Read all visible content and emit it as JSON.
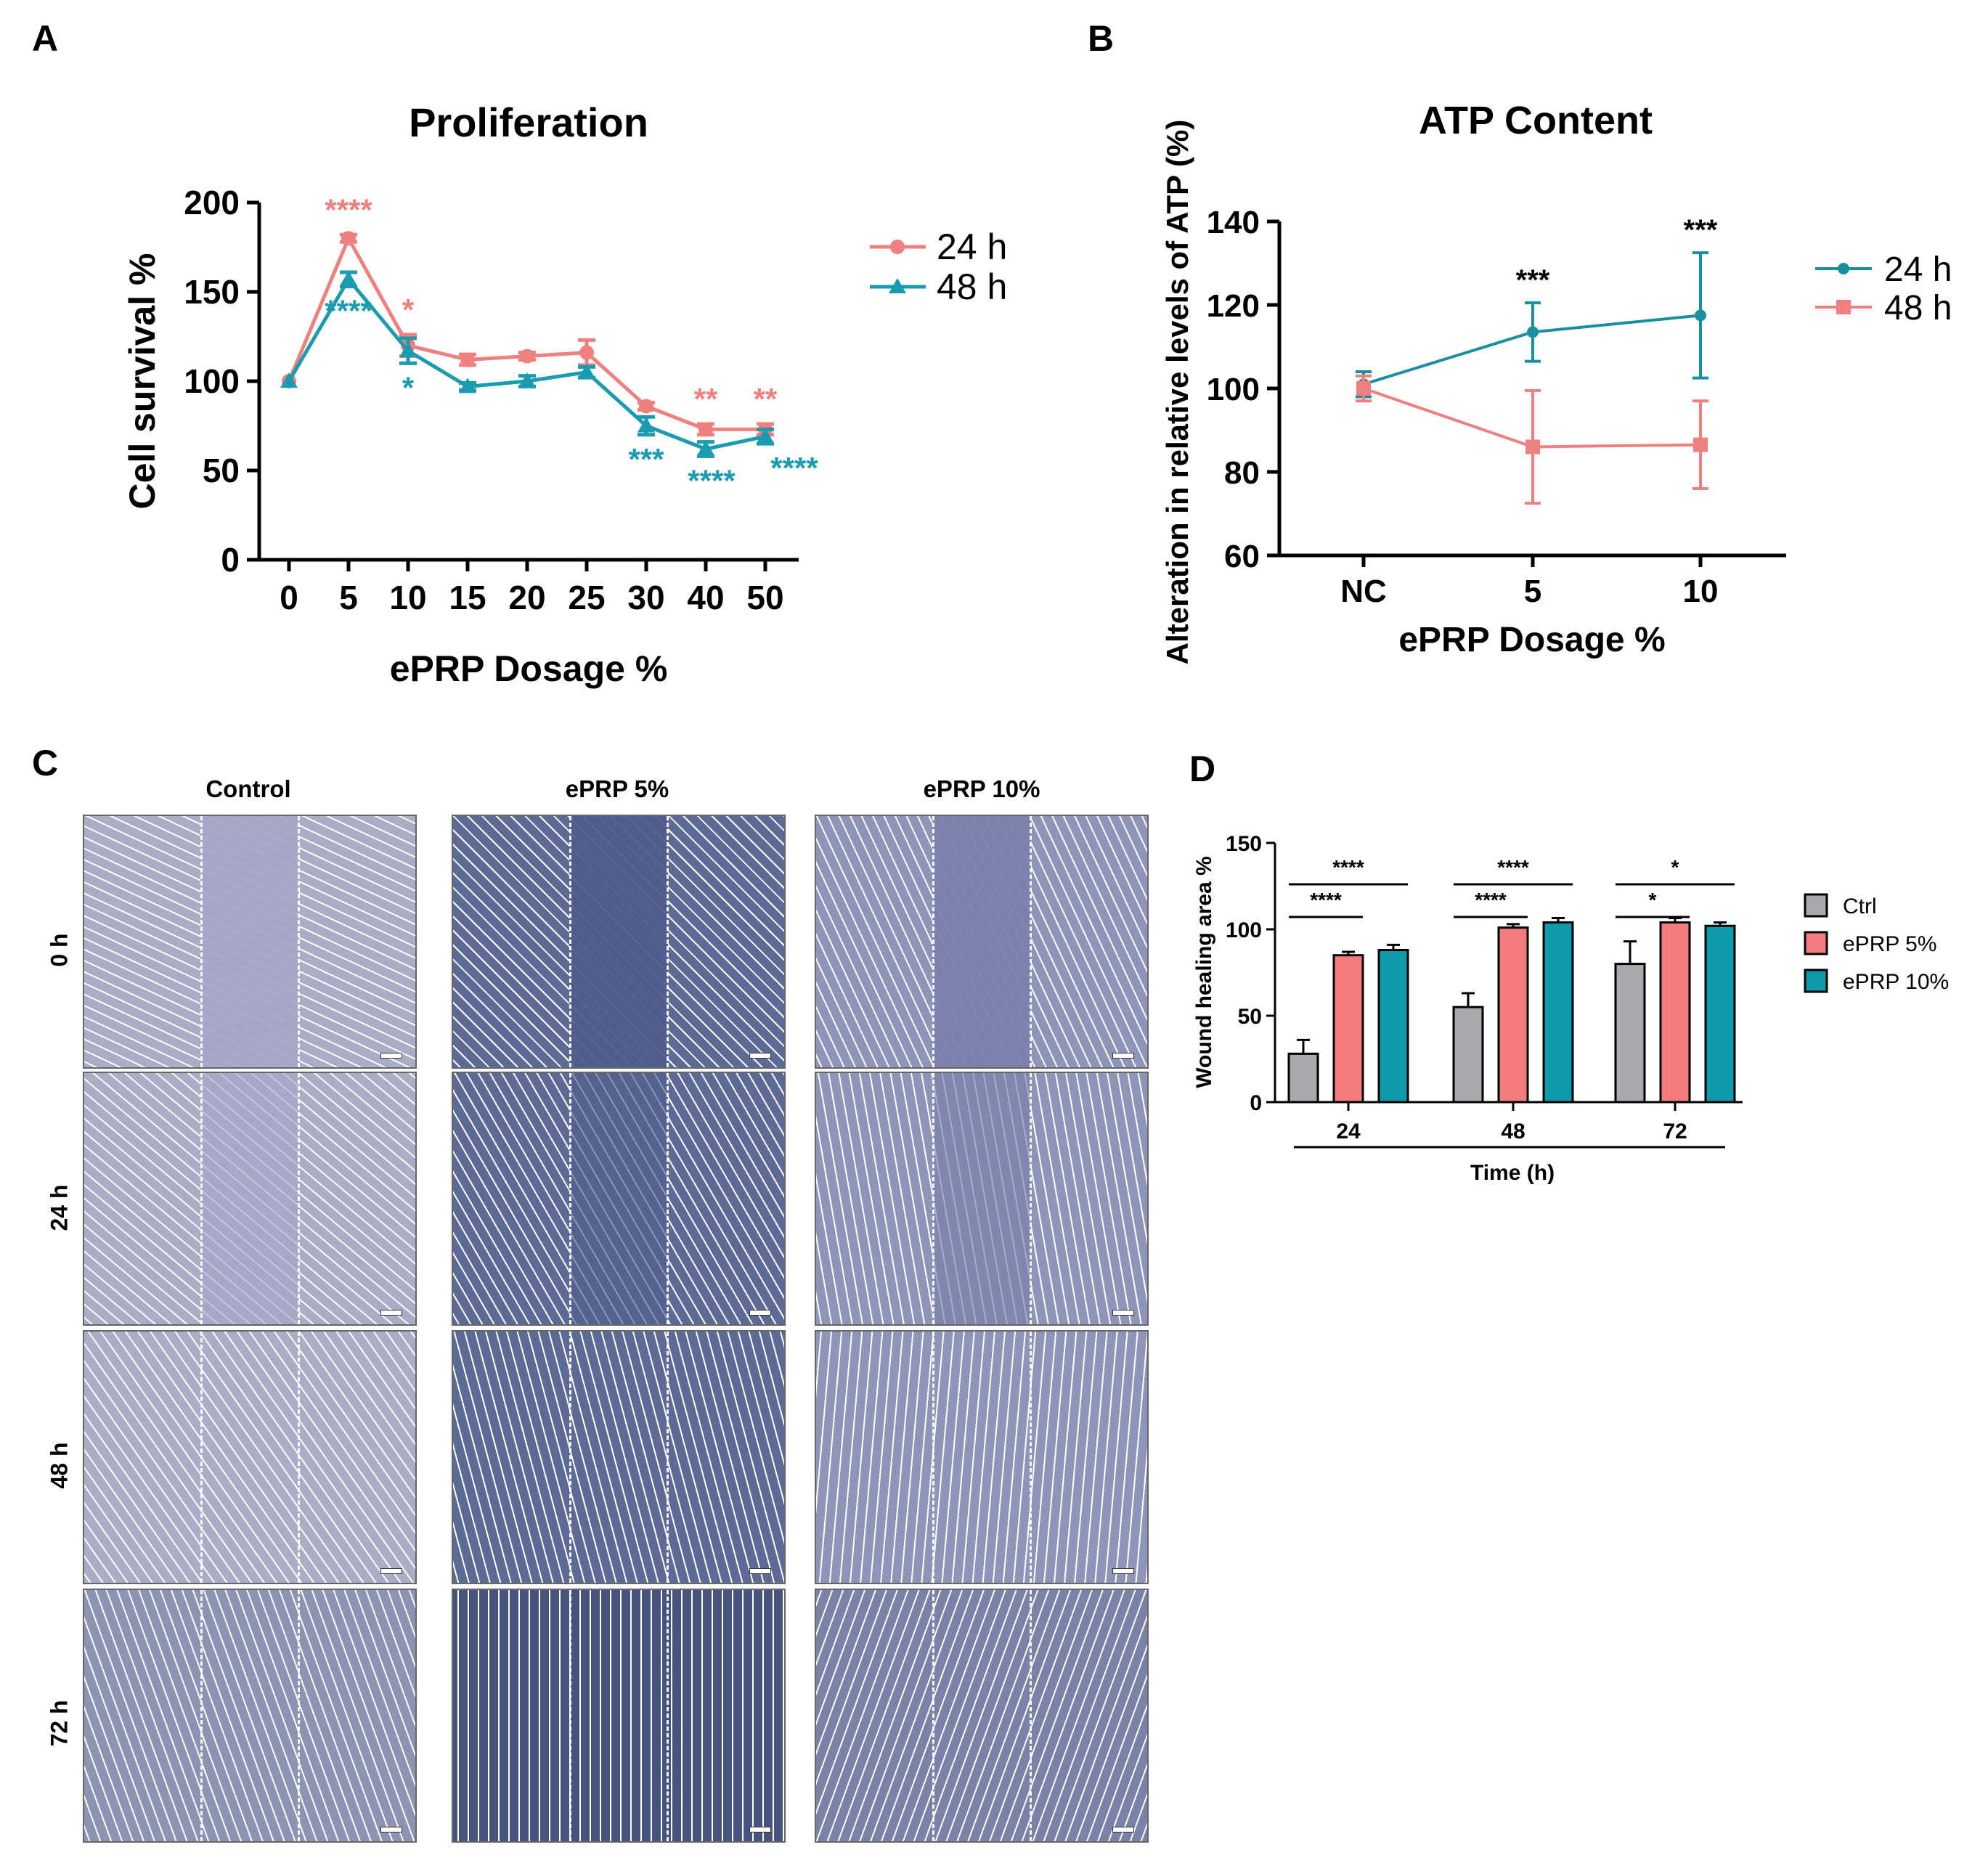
{
  "panels": {
    "A": {
      "letter": "A",
      "chart_data": {
        "type": "line",
        "title": "Proliferation",
        "xlabel": "ePRP Dosage %",
        "ylabel": "Cell survival %",
        "categories": [
          "0",
          "5",
          "10",
          "15",
          "20",
          "25",
          "30",
          "40",
          "50"
        ],
        "ylim": [
          0,
          200
        ],
        "yticks": [
          "0",
          "50",
          "100",
          "150",
          "200"
        ],
        "grid": false,
        "legend_position": "right",
        "series": [
          {
            "name": "24 h",
            "color": "#f08080",
            "marker": "circle",
            "values": [
              100,
              180,
              120,
              112,
              114,
              116,
              86,
              73,
              73
            ],
            "errors": [
              0,
              2,
              6,
              3,
              2,
              7,
              2,
              3,
              3
            ],
            "annotations": [
              "",
              "****",
              "*",
              "",
              "",
              "",
              "",
              "**",
              "**"
            ]
          },
          {
            "name": "48 h",
            "color": "#1a9bb0",
            "marker": "triangle",
            "values": [
              100,
              157,
              117,
              97,
              100,
              105,
              75,
              62,
              69
            ],
            "errors": [
              0,
              4,
              7,
              2,
              3,
              3,
              5,
              4,
              4
            ],
            "annotations": [
              "",
              "****",
              "*",
              "",
              "",
              "",
              "***",
              "****",
              "****"
            ]
          }
        ]
      }
    },
    "B": {
      "letter": "B",
      "chart_data": {
        "type": "line",
        "title": "ATP Content",
        "xlabel": "ePRP Dosage %",
        "ylabel": "Alteration in relative levels of ATP (%)",
        "categories": [
          "NC",
          "5",
          "10"
        ],
        "ylim": [
          60,
          140
        ],
        "yticks": [
          "60",
          "80",
          "100",
          "120",
          "140"
        ],
        "grid": false,
        "legend_position": "right",
        "series": [
          {
            "name": "24 h",
            "color": "#1a8fa0",
            "marker": "circle",
            "values": [
              101,
              113.5,
              117.5
            ],
            "errors": [
              3,
              7,
              15
            ]
          },
          {
            "name": "48 h",
            "color": "#f08080",
            "marker": "square",
            "values": [
              100,
              86,
              86.5
            ],
            "errors": [
              3,
              13.5,
              10.5
            ]
          }
        ],
        "annotations": [
          "",
          "***",
          "***"
        ]
      }
    },
    "C": {
      "letter": "C",
      "columns": [
        "Control",
        "ePRP 5%",
        "ePRP 10%"
      ],
      "rows": [
        "0 h",
        "24 h",
        "48 h",
        "72 h"
      ]
    },
    "D": {
      "letter": "D",
      "chart_data": {
        "type": "bar",
        "xlabel": "Time (h)",
        "ylabel": "Wound healing area %",
        "categories": [
          "24",
          "48",
          "72"
        ],
        "ylim": [
          0,
          150
        ],
        "yticks": [
          "0",
          "50",
          "100",
          "150"
        ],
        "grid": false,
        "legend_position": "right",
        "series": [
          {
            "name": "Ctrl",
            "color": "#a9a9ad",
            "values": [
              28,
              55,
              80
            ],
            "errors": [
              8,
              8,
              13
            ]
          },
          {
            "name": "ePRP 5%",
            "color": "#f47c7c",
            "values": [
              85,
              101,
              104
            ],
            "errors": [
              2,
              2,
              2.5
            ]
          },
          {
            "name": "ePRP 10%",
            "color": "#0f9aaa",
            "values": [
              88,
              104,
              102
            ],
            "errors": [
              3,
              2.5,
              2
            ]
          }
        ],
        "brackets": [
          {
            "group": 0,
            "from": 0,
            "to": 1,
            "label": "****"
          },
          {
            "group": 0,
            "from": 0,
            "to": 2,
            "label": "****"
          },
          {
            "group": 1,
            "from": 0,
            "to": 1,
            "label": "****"
          },
          {
            "group": 1,
            "from": 0,
            "to": 2,
            "label": "****"
          },
          {
            "group": 2,
            "from": 0,
            "to": 1,
            "label": "*"
          },
          {
            "group": 2,
            "from": 0,
            "to": 2,
            "label": "*"
          }
        ]
      }
    }
  }
}
